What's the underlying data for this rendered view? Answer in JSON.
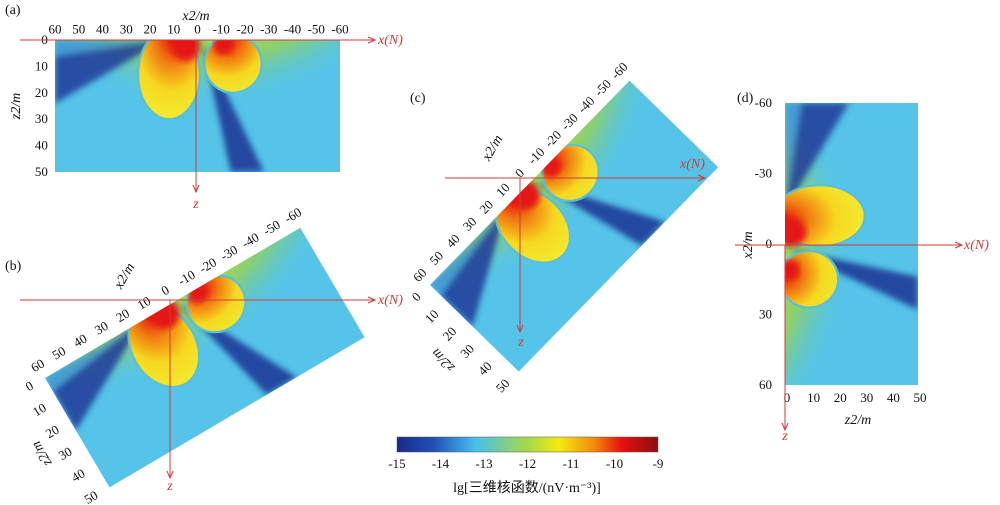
{
  "chart_data": {
    "type": "heatmap",
    "description_title": "lg[三维核函数/(nV·m-3)]",
    "panels": [
      {
        "label": "(a)",
        "x_title": "x2/m",
        "z_title": "z2/m",
        "x_ticks": [
          "60",
          "50",
          "40",
          "30",
          "20",
          "10",
          "0",
          "-10",
          "-20",
          "-30",
          "-40",
          "-50",
          "-60"
        ],
        "z_ticks": [
          "0",
          "10",
          "20",
          "30",
          "40",
          "50"
        ],
        "axis_x": "x(N)",
        "axis_z": "z"
      },
      {
        "label": "(b)",
        "x_title": "x2/m",
        "z_title": "z2/m",
        "x_ticks": [
          "60",
          "50",
          "40",
          "30",
          "20",
          "10",
          "0",
          "-10",
          "-20",
          "-30",
          "-40",
          "-50",
          "-60"
        ],
        "z_ticks": [
          "0",
          "10",
          "20",
          "30",
          "40",
          "50"
        ],
        "axis_x": "x(N)",
        "axis_z": "z"
      },
      {
        "label": "(c)",
        "x_title": "x2/m",
        "z_title": "z2/m",
        "x_ticks": [
          "60",
          "50",
          "40",
          "30",
          "20",
          "10",
          "0",
          "-10",
          "-20",
          "-30",
          "-40",
          "-50",
          "-60"
        ],
        "z_ticks": [
          "0",
          "10",
          "20",
          "30",
          "40",
          "50"
        ],
        "axis_x": "x(N)",
        "axis_z": "z"
      },
      {
        "label": "(d)",
        "x_title": "x2/m",
        "z_title": "z2/m",
        "x_ticks": [
          "-60",
          "-30",
          "0",
          "30",
          "60"
        ],
        "z_ticks": [
          "0",
          "10",
          "20",
          "30",
          "40",
          "50"
        ],
        "axis_x": "x(N)",
        "axis_z": "z"
      }
    ],
    "x2_range": [
      60,
      -60
    ],
    "z2_range": [
      0,
      50
    ],
    "colorbar": {
      "ticks": [
        "-15",
        "-14",
        "-13",
        "-12",
        "-11",
        "-10",
        "-9"
      ],
      "range": [
        -15,
        -9
      ],
      "label": "lg[三维核函数/(nV·m⁻³)]",
      "colors": [
        "#1a2a8a",
        "#2a6fd0",
        "#45c0ec",
        "#a8d848",
        "#f4ea10",
        "#f2900c",
        "#e81010",
        "#8a1010"
      ]
    }
  }
}
